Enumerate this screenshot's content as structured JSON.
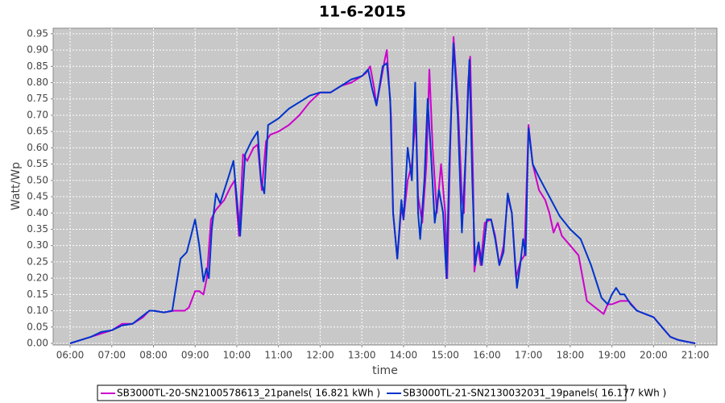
{
  "chart_data": {
    "type": "line",
    "title": "11-6-2015",
    "x_label": "time",
    "y_label": "Watt/Wp",
    "xlim": [
      5.594,
      21.52
    ],
    "ylim": [
      -0.005,
      0.967
    ],
    "grid": true,
    "legend": "bottom",
    "xticks": [
      {
        "value": 6,
        "label": "06:00"
      },
      {
        "value": 7,
        "label": "07:00"
      },
      {
        "value": 8,
        "label": "08:00"
      },
      {
        "value": 9,
        "label": "09:00"
      },
      {
        "value": 10,
        "label": "10:00"
      },
      {
        "value": 11,
        "label": "11:00"
      },
      {
        "value": 12,
        "label": "12:00"
      },
      {
        "value": 13,
        "label": "13:00"
      },
      {
        "value": 14,
        "label": "14:00"
      },
      {
        "value": 15,
        "label": "15:00"
      },
      {
        "value": 16,
        "label": "16:00"
      },
      {
        "value": 17,
        "label": "17:00"
      },
      {
        "value": 18,
        "label": "18:00"
      },
      {
        "value": 19,
        "label": "19:00"
      },
      {
        "value": 20,
        "label": "20:00"
      },
      {
        "value": 21,
        "label": "21:00"
      }
    ],
    "yticks": [
      {
        "value": 0,
        "label": "0.00"
      },
      {
        "value": 0.05,
        "label": "0.05"
      },
      {
        "value": 0.1,
        "label": "0.10"
      },
      {
        "value": 0.15,
        "label": "0.15"
      },
      {
        "value": 0.2,
        "label": "0.20"
      },
      {
        "value": 0.25,
        "label": "0.25"
      },
      {
        "value": 0.3,
        "label": "0.30"
      },
      {
        "value": 0.35,
        "label": "0.35"
      },
      {
        "value": 0.4,
        "label": "0.40"
      },
      {
        "value": 0.45,
        "label": "0.45"
      },
      {
        "value": 0.5,
        "label": "0.50"
      },
      {
        "value": 0.55,
        "label": "0.55"
      },
      {
        "value": 0.6,
        "label": "0.60"
      },
      {
        "value": 0.65,
        "label": "0.65"
      },
      {
        "value": 0.7,
        "label": "0.70"
      },
      {
        "value": 0.75,
        "label": "0.75"
      },
      {
        "value": 0.8,
        "label": "0.80"
      },
      {
        "value": 0.85,
        "label": "0.85"
      },
      {
        "value": 0.9,
        "label": "0.90"
      },
      {
        "value": 0.95,
        "label": "0.95"
      }
    ],
    "series": [
      {
        "name": "SB3000TL-20-SN2100578613_21panels( 16.821 kWh )",
        "color": "#cc00cc",
        "x": [
          6.0,
          6.25,
          6.5,
          6.75,
          7.0,
          7.25,
          7.5,
          7.75,
          7.9,
          8.0,
          8.25,
          8.5,
          8.75,
          8.85,
          9.0,
          9.1,
          9.2,
          9.28,
          9.38,
          9.5,
          9.7,
          9.85,
          9.95,
          10.05,
          10.15,
          10.25,
          10.4,
          10.5,
          10.6,
          10.7,
          10.8,
          11.0,
          11.25,
          11.5,
          11.75,
          12.0,
          12.25,
          12.5,
          12.75,
          13.0,
          13.1,
          13.2,
          13.3,
          13.35,
          13.45,
          13.55,
          13.6,
          13.7,
          13.75,
          13.85,
          13.95,
          14.0,
          14.1,
          14.2,
          14.3,
          14.35,
          14.45,
          14.55,
          14.62,
          14.7,
          14.8,
          14.9,
          15.0,
          15.05,
          15.12,
          15.2,
          15.3,
          15.4,
          15.45,
          15.55,
          15.6,
          15.67,
          15.7,
          15.78,
          15.85,
          15.95,
          16.1,
          16.2,
          16.3,
          16.4,
          16.5,
          16.6,
          16.7,
          16.8,
          16.9,
          17.0,
          17.1,
          17.25,
          17.4,
          17.5,
          17.6,
          17.7,
          17.8,
          18.0,
          18.2,
          18.3,
          18.4,
          18.6,
          18.8,
          18.9,
          19.0,
          19.2,
          19.4,
          19.6,
          19.8,
          20.0,
          20.2,
          20.4,
          20.6,
          20.8,
          21.0
        ],
        "values": [
          0.0,
          0.01,
          0.02,
          0.03,
          0.04,
          0.06,
          0.06,
          0.08,
          0.1,
          0.1,
          0.095,
          0.1,
          0.1,
          0.11,
          0.16,
          0.16,
          0.15,
          0.2,
          0.38,
          0.41,
          0.44,
          0.48,
          0.5,
          0.33,
          0.58,
          0.56,
          0.6,
          0.61,
          0.47,
          0.62,
          0.64,
          0.65,
          0.67,
          0.7,
          0.74,
          0.77,
          0.77,
          0.79,
          0.8,
          0.82,
          0.83,
          0.85,
          0.78,
          0.73,
          0.8,
          0.87,
          0.9,
          0.7,
          0.4,
          0.26,
          0.42,
          0.38,
          0.5,
          0.55,
          0.7,
          0.45,
          0.37,
          0.55,
          0.84,
          0.6,
          0.4,
          0.55,
          0.4,
          0.2,
          0.6,
          0.94,
          0.75,
          0.45,
          0.4,
          0.8,
          0.88,
          0.5,
          0.22,
          0.3,
          0.24,
          0.37,
          0.38,
          0.33,
          0.24,
          0.3,
          0.45,
          0.4,
          0.2,
          0.25,
          0.27,
          0.67,
          0.55,
          0.47,
          0.44,
          0.4,
          0.34,
          0.37,
          0.33,
          0.3,
          0.27,
          0.2,
          0.13,
          0.11,
          0.09,
          0.12,
          0.12,
          0.13,
          0.13,
          0.1,
          0.09,
          0.08,
          0.05,
          0.02,
          0.01,
          0.005,
          0.0
        ]
      },
      {
        "name": "SB3000TL-21-SN2130032031_19panels( 16.177 kWh )",
        "color": "#0033cc",
        "x": [
          6.0,
          6.25,
          6.5,
          6.75,
          7.0,
          7.25,
          7.5,
          7.75,
          7.9,
          8.0,
          8.25,
          8.45,
          8.55,
          8.65,
          8.8,
          8.9,
          9.0,
          9.1,
          9.2,
          9.27,
          9.33,
          9.4,
          9.5,
          9.6,
          9.7,
          9.8,
          9.92,
          10.08,
          10.2,
          10.35,
          10.5,
          10.58,
          10.66,
          10.75,
          11.0,
          11.25,
          11.5,
          11.75,
          12.0,
          12.25,
          12.5,
          12.75,
          13.0,
          13.15,
          13.25,
          13.35,
          13.5,
          13.6,
          13.68,
          13.75,
          13.85,
          13.95,
          14.0,
          14.1,
          14.2,
          14.28,
          14.35,
          14.4,
          14.5,
          14.58,
          14.65,
          14.75,
          14.85,
          14.95,
          15.03,
          15.1,
          15.2,
          15.3,
          15.4,
          15.5,
          15.58,
          15.65,
          15.72,
          15.8,
          15.88,
          16.0,
          16.1,
          16.2,
          16.3,
          16.4,
          16.5,
          16.6,
          16.72,
          16.8,
          16.87,
          16.93,
          17.0,
          17.1,
          17.25,
          17.5,
          17.75,
          18.0,
          18.25,
          18.5,
          18.6,
          18.75,
          18.9,
          19.0,
          19.1,
          19.2,
          19.3,
          19.45,
          19.6,
          19.8,
          20.0,
          20.2,
          20.4,
          20.6,
          20.8,
          21.0
        ],
        "values": [
          0.0,
          0.01,
          0.02,
          0.035,
          0.04,
          0.055,
          0.06,
          0.085,
          0.1,
          0.1,
          0.095,
          0.1,
          0.18,
          0.26,
          0.28,
          0.33,
          0.38,
          0.3,
          0.19,
          0.23,
          0.2,
          0.35,
          0.46,
          0.43,
          0.47,
          0.51,
          0.56,
          0.33,
          0.58,
          0.62,
          0.65,
          0.5,
          0.46,
          0.67,
          0.69,
          0.72,
          0.74,
          0.76,
          0.77,
          0.77,
          0.79,
          0.81,
          0.82,
          0.84,
          0.78,
          0.73,
          0.85,
          0.86,
          0.75,
          0.4,
          0.26,
          0.44,
          0.38,
          0.6,
          0.5,
          0.8,
          0.4,
          0.32,
          0.5,
          0.75,
          0.6,
          0.37,
          0.47,
          0.4,
          0.2,
          0.55,
          0.92,
          0.7,
          0.34,
          0.6,
          0.87,
          0.5,
          0.24,
          0.31,
          0.24,
          0.38,
          0.38,
          0.32,
          0.24,
          0.28,
          0.46,
          0.4,
          0.17,
          0.24,
          0.32,
          0.27,
          0.66,
          0.55,
          0.51,
          0.45,
          0.39,
          0.35,
          0.32,
          0.24,
          0.2,
          0.14,
          0.12,
          0.15,
          0.17,
          0.15,
          0.15,
          0.12,
          0.1,
          0.09,
          0.08,
          0.05,
          0.02,
          0.01,
          0.005,
          0.0
        ]
      }
    ]
  }
}
